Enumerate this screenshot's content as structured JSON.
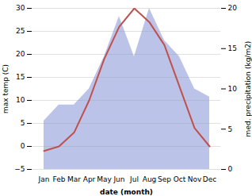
{
  "chart_data": {
    "type": "line",
    "xlabel": "date (month)",
    "ylabel": "max temp (C)",
    "y2label": "med. precipitation (kg/m2)",
    "categories": [
      "Jan",
      "Feb",
      "Mar",
      "Apr",
      "May",
      "Jun",
      "Jul",
      "Aug",
      "Sep",
      "Oct",
      "Nov",
      "Dec"
    ],
    "series": [
      {
        "type": "area",
        "axis": "y2",
        "color": "#bbc4e8",
        "values": [
          6,
          8,
          8,
          10,
          14,
          19,
          14,
          20,
          16,
          14,
          10,
          9
        ]
      },
      {
        "type": "line",
        "color": "#c0504d",
        "values": [
          -1,
          0,
          3,
          10,
          19,
          26,
          30,
          27,
          22,
          13,
          4,
          0
        ]
      }
    ],
    "ylim": [
      -5,
      30
    ],
    "yticks": [
      -5,
      0,
      5,
      10,
      15,
      20,
      25,
      30
    ],
    "y2lim": [
      0,
      20
    ],
    "y2ticks": [
      0,
      5,
      10,
      15,
      20
    ],
    "grid": true
  }
}
